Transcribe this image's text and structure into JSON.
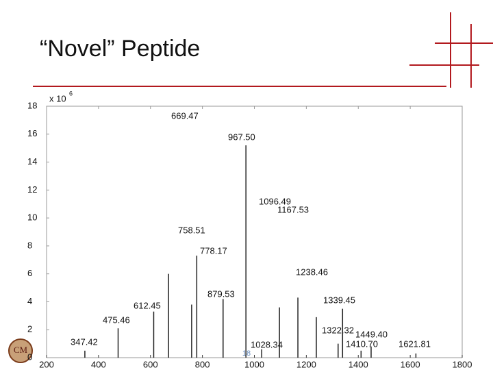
{
  "title": "“Novel” Peptide",
  "slide_number": "18",
  "chart_data": {
    "type": "spectrum",
    "y_multiplier": {
      "base": "x 10",
      "exponent": "6"
    },
    "x": [
      347.42,
      475.46,
      612.45,
      669.47,
      758.51,
      778.17,
      879.53,
      967.5,
      1028.34,
      1096.49,
      1167.53,
      1238.46,
      1322.32,
      1339.45,
      1410.7,
      1449.4,
      1621.81
    ],
    "peak_labels": [
      "347.42",
      "475.46",
      "612.45",
      "669.47",
      "758.51",
      "778.17",
      "879.53",
      "967.50",
      "1028.34",
      "1096.49",
      "1167.53",
      "1238.46",
      "1322.32",
      "1339.45",
      "1410.70",
      "1449.40",
      "1621.81"
    ],
    "values": [
      0.5,
      2.1,
      3.3,
      6.0,
      3.8,
      7.3,
      4.2,
      15.2,
      0.6,
      3.6,
      4.3,
      2.9,
      1.0,
      3.5,
      0.5,
      0.8,
      0.3
    ],
    "color": "#222222",
    "xlim": [
      200,
      1800
    ],
    "xticks": [
      200,
      400,
      600,
      800,
      1000,
      1200,
      1400,
      1600,
      1800
    ],
    "ylim": [
      0,
      18
    ],
    "yticks": [
      0,
      2,
      4,
      6,
      8,
      10,
      12,
      14,
      16,
      18
    ]
  }
}
